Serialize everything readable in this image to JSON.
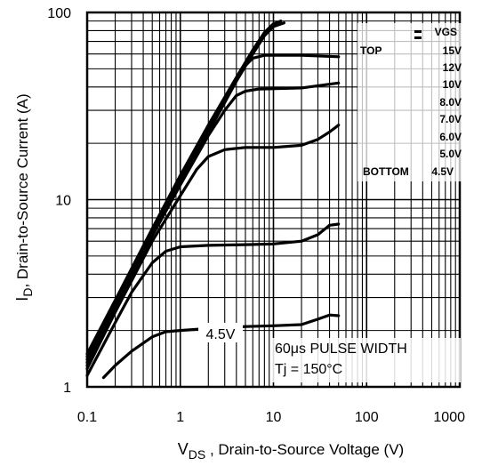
{
  "chart_data": {
    "type": "line",
    "title": "",
    "xlabel_main": "V",
    "xlabel_sub": "DS",
    "xlabel_rest": " , Drain-to-Source Voltage (V)",
    "ylabel_main": "I",
    "ylabel_sub": "D",
    "ylabel_rest": ", Drain-to-Source Current (A)",
    "x_scale": "log",
    "y_scale": "log",
    "xlim": [
      0.1,
      1000
    ],
    "ylim": [
      1,
      100
    ],
    "x_ticks": [
      "0.1",
      "1",
      "10",
      "100",
      "1000"
    ],
    "y_ticks": [
      "1",
      "10",
      "100"
    ],
    "grid": true,
    "legend": {
      "placement": "top-right",
      "header": "VGS",
      "top_label": "TOP",
      "bottom_label": "BOTTOM",
      "entries": [
        "15V",
        "12V",
        "10V",
        "8.0V",
        "7.0V",
        "6.0V",
        "5.0V",
        "4.5V"
      ]
    },
    "annotations": {
      "curve_label": "4.5V",
      "note_line1": "60μs PULSE  WIDTH",
      "note_line2": "Tj = 150°C"
    },
    "series": [
      {
        "name": "15V",
        "x": [
          0.1,
          0.2,
          0.5,
          1,
          2,
          4,
          6,
          8,
          10,
          12
        ],
        "y": [
          1.5,
          2.9,
          7.0,
          13.5,
          25,
          45,
          63,
          78,
          87,
          90
        ]
      },
      {
        "name": "12V",
        "x": [
          0.1,
          0.2,
          0.5,
          1,
          2,
          4,
          6,
          8,
          10,
          12
        ],
        "y": [
          1.45,
          2.85,
          6.9,
          13.2,
          24.5,
          44,
          61,
          76,
          85,
          88
        ]
      },
      {
        "name": "10V",
        "x": [
          0.1,
          0.2,
          0.5,
          1,
          2,
          4,
          6,
          8,
          10,
          13
        ],
        "y": [
          1.4,
          2.8,
          6.8,
          13,
          24,
          43,
          60,
          75,
          84,
          88
        ]
      },
      {
        "name": "8.0V",
        "x": [
          0.1,
          0.2,
          0.5,
          1,
          2,
          3,
          4,
          5,
          6,
          8,
          20,
          50
        ],
        "y": [
          1.35,
          2.7,
          6.6,
          12.5,
          23,
          33,
          43,
          52,
          57,
          59,
          59,
          58
        ]
      },
      {
        "name": "7.0V",
        "x": [
          0.1,
          0.2,
          0.5,
          1,
          2,
          3,
          4,
          5,
          7,
          20,
          50
        ],
        "y": [
          1.3,
          2.6,
          6.4,
          12,
          22,
          30,
          36,
          38,
          39,
          39.5,
          42
        ]
      },
      {
        "name": "6.0V",
        "x": [
          0.1,
          0.2,
          0.5,
          1,
          1.5,
          2,
          3,
          5,
          10,
          20,
          30,
          40,
          50
        ],
        "y": [
          1.25,
          2.5,
          6.0,
          10.5,
          14.5,
          17,
          18.5,
          19,
          19,
          19.5,
          21,
          23,
          25
        ]
      },
      {
        "name": "5.0V",
        "x": [
          0.1,
          0.2,
          0.3,
          0.5,
          0.7,
          1,
          2,
          5,
          10,
          20,
          30,
          40,
          50
        ],
        "y": [
          1.15,
          2.2,
          3.2,
          4.6,
          5.3,
          5.6,
          5.7,
          5.75,
          5.8,
          6.0,
          6.5,
          7.3,
          7.4
        ]
      },
      {
        "name": "4.5V",
        "x": [
          0.15,
          0.2,
          0.3,
          0.5,
          0.7,
          1,
          2,
          5,
          10,
          20,
          30,
          40,
          50
        ],
        "y": [
          1.12,
          1.3,
          1.55,
          1.85,
          1.97,
          2.0,
          2.05,
          2.1,
          2.12,
          2.15,
          2.3,
          2.42,
          2.4
        ]
      }
    ]
  }
}
